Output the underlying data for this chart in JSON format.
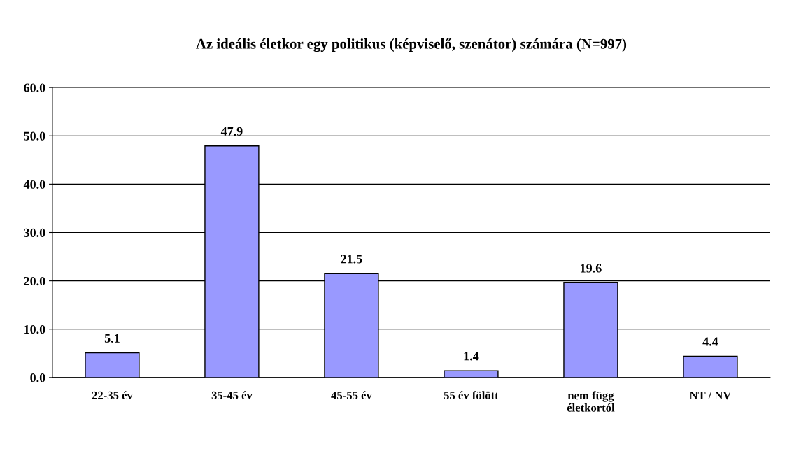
{
  "chart_data": {
    "type": "bar",
    "title": "Az ideális életkor egy politikus (képviselő, szenátor) számára (N=997)",
    "categories": [
      "22-35 év",
      "35-45 év",
      "45-55 év",
      "55 év fölött",
      "nem függ\néletkortól",
      "NT / NV"
    ],
    "values": [
      5.1,
      47.9,
      21.5,
      1.4,
      19.6,
      4.4
    ],
    "color": "#9999ff",
    "ylim": [
      0,
      60
    ],
    "yticks": [
      {
        "value": 0,
        "label": "0.0"
      },
      {
        "value": 10,
        "label": "10.0"
      },
      {
        "value": 20,
        "label": "20.0"
      },
      {
        "value": 30,
        "label": "30.0"
      },
      {
        "value": 40,
        "label": "40.0"
      },
      {
        "value": 50,
        "label": "50.0"
      },
      {
        "value": 60,
        "label": "60.0"
      }
    ],
    "grid": "y",
    "data_labels": true
  }
}
